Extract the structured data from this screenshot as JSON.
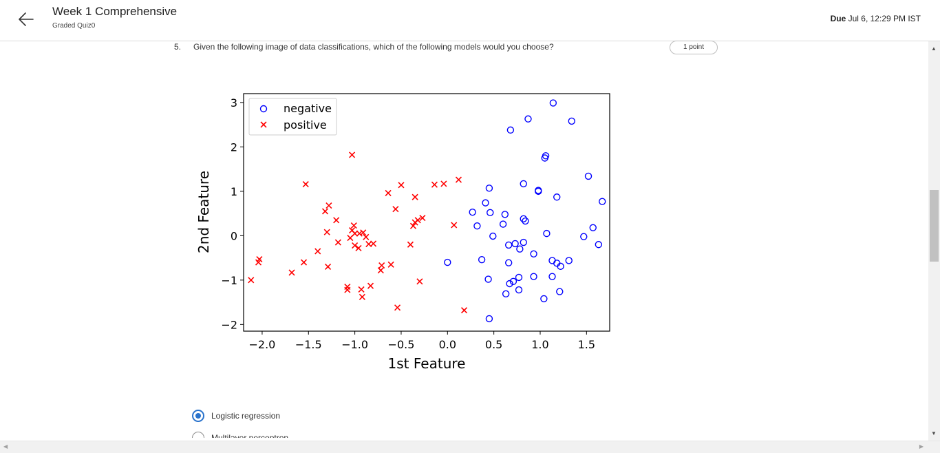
{
  "header": {
    "title": "Week 1 Comprehensive",
    "subtitle": "Graded Quiz0",
    "due_label": "Due",
    "due_value": " Jul 6, 12:29 PM IST"
  },
  "question": {
    "number": "5.",
    "text": "Given the following image of data classifications, which of the following models would you choose?",
    "points": "1 point"
  },
  "options": [
    {
      "label": "Logistic regression",
      "selected": true
    },
    {
      "label": "Multilayer perceptron",
      "selected": false
    }
  ],
  "chart_data": {
    "type": "scatter",
    "title": "",
    "xlabel": "1st Feature",
    "ylabel": "2nd Feature",
    "xlim": [
      -2.2,
      1.75
    ],
    "ylim": [
      -2.15,
      3.2
    ],
    "xticks": [
      -2.0,
      -1.5,
      -1.0,
      -0.5,
      0.0,
      0.5,
      1.0,
      1.5
    ],
    "xtick_labels": [
      "−2.0",
      "−1.5",
      "−1.0",
      "−0.5",
      "0.0",
      "0.5",
      "1.0",
      "1.5"
    ],
    "yticks": [
      -2,
      -1,
      0,
      1,
      2,
      3
    ],
    "ytick_labels": [
      "−2",
      "−1",
      "0",
      "1",
      "2",
      "3"
    ],
    "legend_position": "top-left",
    "grid": false,
    "series": [
      {
        "name": "negative",
        "marker": "circle",
        "color": "#0000ff",
        "points": [
          [
            1.14,
            2.99
          ],
          [
            1.34,
            2.58
          ],
          [
            0.87,
            2.63
          ],
          [
            0.68,
            2.38
          ],
          [
            1.06,
            1.8
          ],
          [
            1.05,
            1.75
          ],
          [
            1.52,
            1.34
          ],
          [
            0.82,
            1.17
          ],
          [
            0.45,
            1.07
          ],
          [
            0.98,
            1.02
          ],
          [
            0.98,
            1.0
          ],
          [
            1.18,
            0.87
          ],
          [
            1.67,
            0.77
          ],
          [
            0.41,
            0.74
          ],
          [
            0.27,
            0.53
          ],
          [
            0.46,
            0.52
          ],
          [
            0.62,
            0.48
          ],
          [
            0.82,
            0.38
          ],
          [
            0.84,
            0.33
          ],
          [
            0.32,
            0.22
          ],
          [
            0.6,
            0.26
          ],
          [
            1.57,
            0.18
          ],
          [
            1.07,
            0.05
          ],
          [
            1.47,
            -0.02
          ],
          [
            0.49,
            -0.01
          ],
          [
            0.82,
            -0.15
          ],
          [
            0.66,
            -0.21
          ],
          [
            0.73,
            -0.18
          ],
          [
            1.63,
            -0.2
          ],
          [
            0.78,
            -0.3
          ],
          [
            0.93,
            -0.41
          ],
          [
            0.37,
            -0.54
          ],
          [
            1.13,
            -0.56
          ],
          [
            1.18,
            -0.62
          ],
          [
            1.31,
            -0.56
          ],
          [
            1.22,
            -0.69
          ],
          [
            0.0,
            -0.6
          ],
          [
            0.66,
            -0.61
          ],
          [
            0.93,
            -0.92
          ],
          [
            0.44,
            -0.98
          ],
          [
            0.71,
            -1.03
          ],
          [
            0.77,
            -0.94
          ],
          [
            1.13,
            -0.92
          ],
          [
            0.67,
            -1.08
          ],
          [
            0.77,
            -1.22
          ],
          [
            1.21,
            -1.26
          ],
          [
            0.63,
            -1.31
          ],
          [
            1.04,
            -1.42
          ],
          [
            0.45,
            -1.87
          ]
        ]
      },
      {
        "name": "positive",
        "marker": "x",
        "color": "#ff0000",
        "points": [
          [
            -1.03,
            1.82
          ],
          [
            -1.53,
            1.16
          ],
          [
            -0.5,
            1.14
          ],
          [
            -0.64,
            0.96
          ],
          [
            -0.35,
            0.87
          ],
          [
            -0.14,
            1.15
          ],
          [
            -0.04,
            1.17
          ],
          [
            0.12,
            1.26
          ],
          [
            -1.28,
            0.68
          ],
          [
            -1.32,
            0.55
          ],
          [
            -0.56,
            0.6
          ],
          [
            -1.2,
            0.35
          ],
          [
            -0.27,
            0.4
          ],
          [
            -0.32,
            0.35
          ],
          [
            -0.35,
            0.3
          ],
          [
            -0.37,
            0.22
          ],
          [
            0.07,
            0.24
          ],
          [
            -1.01,
            0.23
          ],
          [
            -1.03,
            0.12
          ],
          [
            -1.3,
            0.08
          ],
          [
            -1.0,
            0.05
          ],
          [
            -0.95,
            0.05
          ],
          [
            -0.91,
            0.07
          ],
          [
            -0.88,
            -0.03
          ],
          [
            -1.05,
            -0.05
          ],
          [
            -0.85,
            -0.19
          ],
          [
            -0.8,
            -0.18
          ],
          [
            -1.18,
            -0.15
          ],
          [
            -0.4,
            -0.2
          ],
          [
            -1.0,
            -0.22
          ],
          [
            -0.96,
            -0.28
          ],
          [
            -1.4,
            -0.35
          ],
          [
            -2.03,
            -0.53
          ],
          [
            -2.04,
            -0.6
          ],
          [
            -1.55,
            -0.6
          ],
          [
            -1.29,
            -0.7
          ],
          [
            -0.61,
            -0.65
          ],
          [
            -0.71,
            -0.67
          ],
          [
            -0.72,
            -0.78
          ],
          [
            -1.68,
            -0.83
          ],
          [
            -2.12,
            -1.0
          ],
          [
            -0.3,
            -1.03
          ],
          [
            -1.08,
            -1.15
          ],
          [
            -1.08,
            -1.22
          ],
          [
            -0.83,
            -1.13
          ],
          [
            -0.93,
            -1.21
          ],
          [
            -0.92,
            -1.38
          ],
          [
            -0.54,
            -1.62
          ],
          [
            0.18,
            -1.68
          ]
        ]
      }
    ]
  }
}
